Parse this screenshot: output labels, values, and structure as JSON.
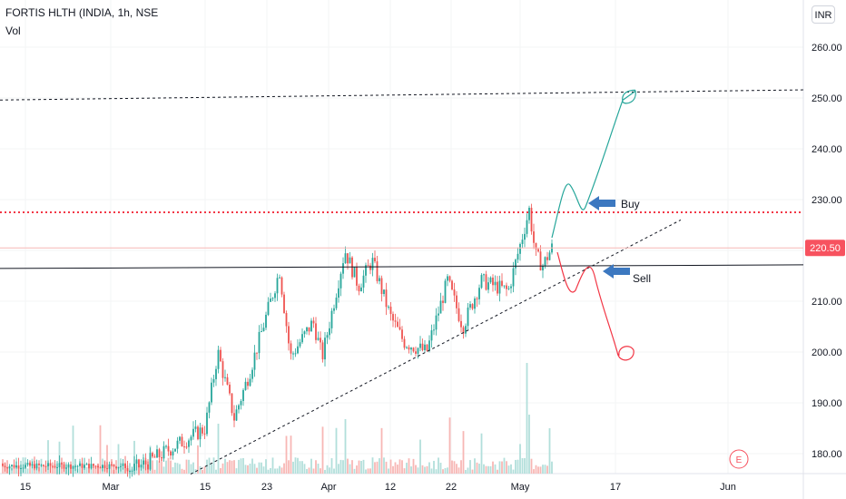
{
  "header": {
    "symbol_title": "FORTIS HLTH (INDIA, 1h, NSE",
    "volume_label": "Vol",
    "currency": "INR"
  },
  "colors": {
    "up": "#26a69a",
    "down": "#ef5350",
    "vol_up": "#b2dfdb",
    "vol_down": "#f7b7b5",
    "resistance": "#f23645",
    "neckline": "#131722",
    "buy_path": "#26a69a",
    "sell_path": "#f23645",
    "arrow": "#3c78c0",
    "price_tag": "#f7525f"
  },
  "annotations": {
    "buy": "Buy",
    "sell": "Sell",
    "earnings": "E",
    "last_price": "220.50"
  },
  "chart_data": {
    "type": "candlestick",
    "title": "FORTIS HLTH (INDIA, 1h, NSE",
    "y_axis": {
      "ticks": [
        180,
        190,
        200,
        210,
        220,
        230,
        240,
        250,
        260
      ],
      "tick_labels": [
        "180.00",
        "190.00",
        "200.00",
        "210.00",
        "220.00",
        "230.00",
        "240.00",
        "250.00",
        "260.00"
      ],
      "range": [
        176.5,
        263
      ]
    },
    "x_axis": {
      "tick_labels": [
        "15",
        "Mar",
        "15",
        "23",
        "Apr",
        "12",
        "22",
        "May",
        "17",
        "Jun"
      ]
    },
    "last_price": 220.5,
    "levels": {
      "resistance": 227.5,
      "horizontal_support": 216.8,
      "upper_channel": {
        "from": 249.6,
        "to": 251.6
      },
      "rising_trendline": {
        "from_price": 176.5,
        "to_price": 226.0
      }
    },
    "price_path_keypoints": [
      {
        "label": "15",
        "price": 176.5
      },
      {
        "label": "Mar",
        "price": 178
      },
      {
        "label": "15",
        "price": 185
      },
      {
        "label": "",
        "price": 200
      },
      {
        "label": "",
        "price": 187
      },
      {
        "label": "",
        "price": 196
      },
      {
        "label": "23",
        "price": 216
      },
      {
        "label": "",
        "price": 199
      },
      {
        "label": "",
        "price": 206
      },
      {
        "label": "",
        "price": 199
      },
      {
        "label": "Apr",
        "price": 220
      },
      {
        "label": "",
        "price": 213
      },
      {
        "label": "",
        "price": 218
      },
      {
        "label": "12",
        "price": 207
      },
      {
        "label": "",
        "price": 202
      },
      {
        "label": "",
        "price": 200
      },
      {
        "label": "22",
        "price": 214
      },
      {
        "label": "",
        "price": 205
      },
      {
        "label": "",
        "price": 214
      },
      {
        "label": "",
        "price": 212
      },
      {
        "label": "May",
        "price": 228
      },
      {
        "label": "",
        "price": 219
      },
      {
        "label": "",
        "price": 217
      },
      {
        "label": "",
        "price": 220.5
      }
    ],
    "scenarios": [
      {
        "name": "Buy",
        "target": 251
      },
      {
        "name": "Sell",
        "target": 200
      }
    ]
  }
}
